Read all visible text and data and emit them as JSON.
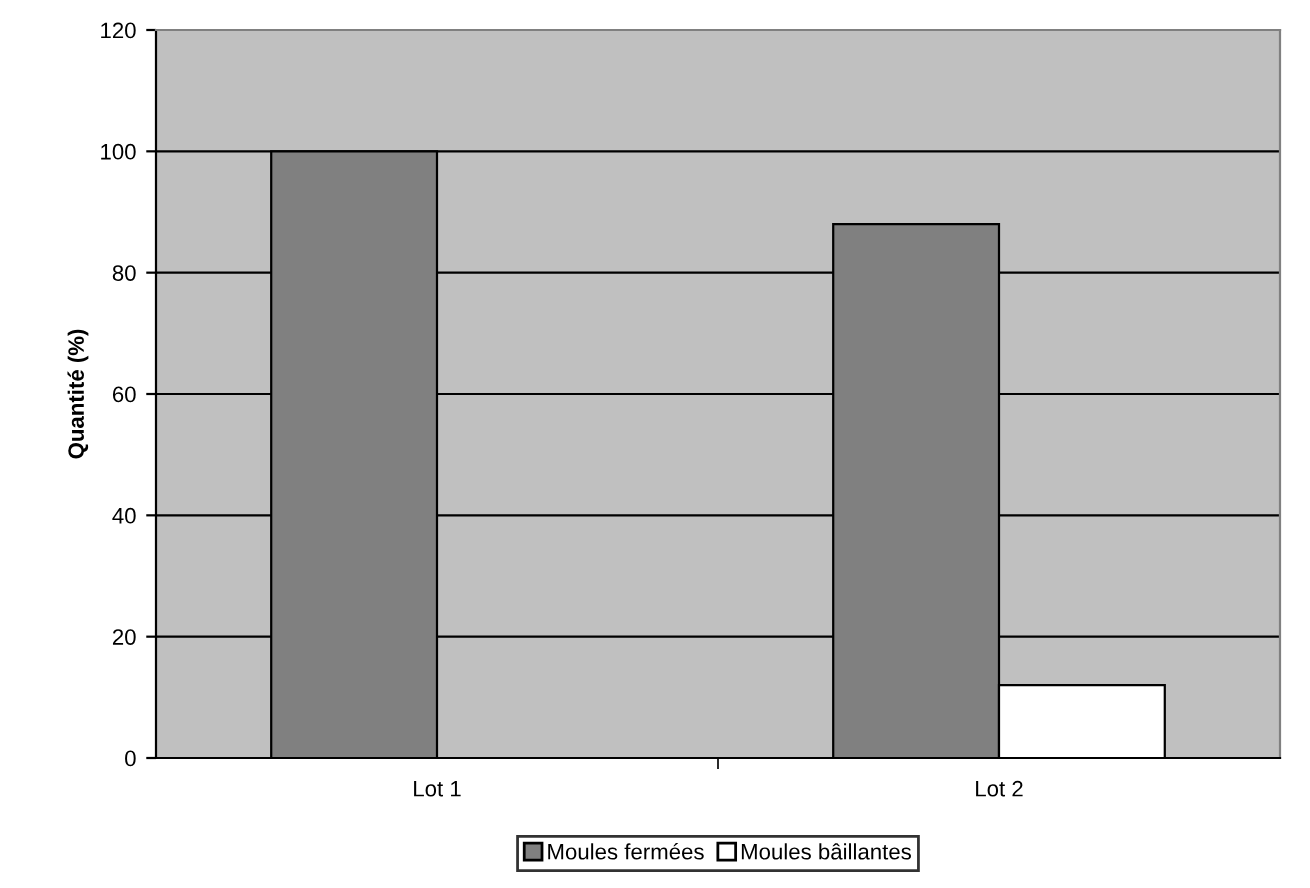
{
  "chart_data": {
    "type": "bar",
    "ylabel": "Quantité (%)",
    "categories": [
      "Lot 1",
      "Lot 2"
    ],
    "series": [
      {
        "name": "Moules fermées",
        "color": "#808080",
        "values": [
          100,
          88
        ]
      },
      {
        "name": "Moules bâillantes",
        "color": "#ffffff",
        "values": [
          null,
          12
        ]
      }
    ],
    "ylim": [
      0,
      120
    ],
    "yticks": [
      0,
      20,
      40,
      60,
      80,
      100,
      120
    ],
    "grid": "y",
    "legend": "bottom"
  }
}
